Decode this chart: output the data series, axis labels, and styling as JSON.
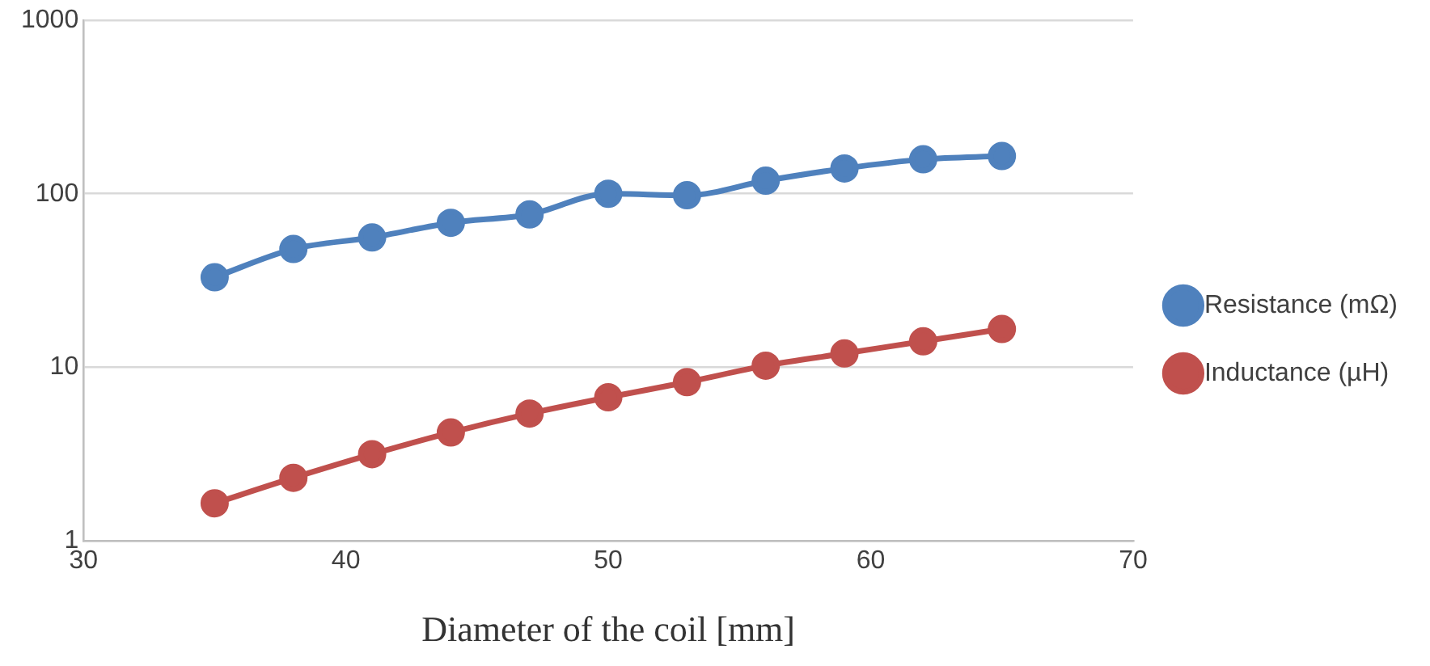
{
  "chart_data": {
    "type": "line",
    "xlabel": "Diameter of the coil [mm]",
    "xlim": [
      30,
      70
    ],
    "xticks": [
      30,
      40,
      50,
      60,
      70
    ],
    "ylim": [
      1,
      1000
    ],
    "yticks": [
      1,
      10,
      100,
      1000
    ],
    "log": "y",
    "grid": "y",
    "legend": "right",
    "marker": "circle",
    "line_style": "solid",
    "x": [
      35,
      38,
      41,
      44,
      47,
      50,
      53,
      56,
      59,
      62,
      65
    ],
    "series": [
      {
        "name": "Resistance (mΩ)",
        "color": "#4f81bd",
        "values": [
          33,
          48,
          56,
          68,
          76,
          100,
          98,
          119,
          140,
          158,
          165
        ]
      },
      {
        "name": "Inductance (µH)",
        "color": "#c0504d",
        "values": [
          1.64,
          2.3,
          3.15,
          4.2,
          5.4,
          6.7,
          8.2,
          10.2,
          12,
          14.1,
          16.6
        ]
      }
    ]
  }
}
